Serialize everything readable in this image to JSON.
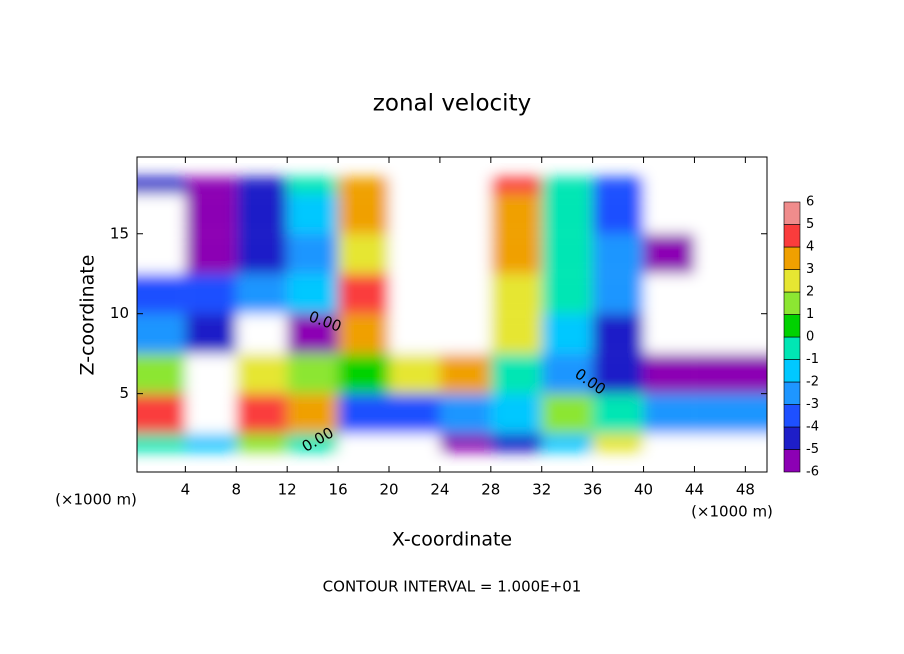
{
  "chart_data": {
    "type": "contour",
    "title": "zonal velocity",
    "xlabel": "X-coordinate",
    "ylabel": "Z-coordinate",
    "x_unit_labels": [
      "(×1000 m)",
      "(×1000 m)"
    ],
    "footer": "CONTOUR INTERVAL = 1.000E+01",
    "contour_labels": [
      "0.00",
      "0.00",
      "0.00"
    ],
    "xlim": [
      0.2,
      49.7
    ],
    "ylim": [
      0.1,
      19.8
    ],
    "xticks": [
      4,
      8,
      12,
      16,
      20,
      24,
      28,
      32,
      36,
      40,
      44,
      48
    ],
    "yticks": [
      5,
      10,
      15
    ],
    "x": [
      2,
      6,
      10,
      14,
      18,
      22,
      26,
      30,
      34,
      38,
      42,
      46
    ],
    "y": [
      1.25,
      3.75,
      6.25,
      8.75,
      11.25,
      13.75,
      16.25,
      18.75
    ],
    "z": [
      [
        0,
        -1,
        2,
        0,
        -8,
        -8,
        -6,
        -4,
        -1,
        3,
        8,
        10
      ],
      [
        5,
        8,
        5,
        4,
        -3,
        -3,
        -2,
        -1,
        2,
        0,
        -2,
        -2
      ],
      [
        2,
        7,
        3,
        2,
        1,
        3,
        4,
        0,
        -2,
        -4,
        -5,
        -5
      ],
      [
        -2,
        -4,
        -7,
        -5,
        4,
        10,
        10,
        3,
        -1,
        -4,
        -8,
        -8
      ],
      [
        -3,
        -3,
        -2,
        -1,
        5,
        8,
        10,
        3,
        0,
        -2,
        -8,
        -10
      ],
      [
        -8,
        -5,
        -4,
        -2,
        3,
        7,
        10,
        4,
        0,
        -2,
        -5,
        -10
      ],
      [
        -7,
        -5,
        -4,
        -1,
        4,
        8,
        10,
        4,
        0,
        -3,
        -10,
        -10
      ],
      [
        -4,
        -5,
        -4,
        0,
        4,
        10,
        10,
        5,
        0,
        -3,
        -10,
        -10
      ]
    ],
    "colorbar": {
      "levels": [
        -6,
        -5,
        -4,
        -3,
        -2,
        -1,
        0,
        1,
        2,
        3,
        4,
        5,
        6
      ],
      "colors": [
        "#8c00b4",
        "#1e1ec8",
        "#1e50ff",
        "#1e96ff",
        "#00c8ff",
        "#00e6b4",
        "#00d200",
        "#8ce632",
        "#e6e632",
        "#f0a000",
        "#fa3c3c",
        "#f08c8c"
      ]
    }
  }
}
